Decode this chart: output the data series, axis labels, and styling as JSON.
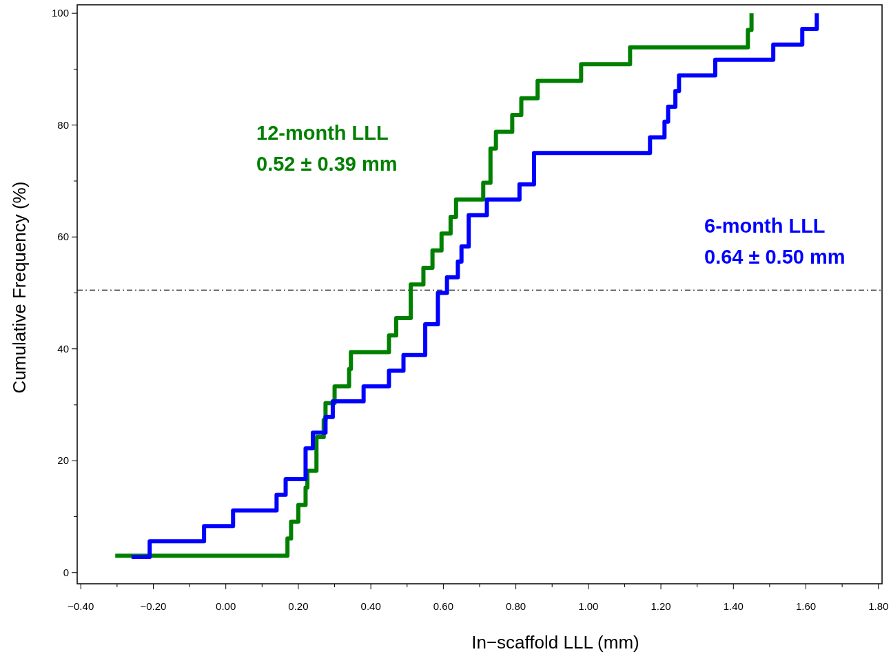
{
  "chart_data": {
    "type": "step",
    "xlabel": "In−scaffold LLL (mm)",
    "ylabel": "Cumulative Frequency (%)",
    "xlim": [
      -0.41,
      1.81
    ],
    "ylim": [
      -2,
      101.5
    ],
    "xticks": [
      {
        "value": -0.4,
        "label": "−0.40"
      },
      {
        "value": -0.3,
        "label": null
      },
      {
        "value": -0.2,
        "label": "−0.20"
      },
      {
        "value": -0.1,
        "label": null
      },
      {
        "value": 0,
        "label": "0.00"
      },
      {
        "value": 0.1,
        "label": null
      },
      {
        "value": 0.2,
        "label": "0.20"
      },
      {
        "value": 0.3,
        "label": null
      },
      {
        "value": 0.4,
        "label": "0.40"
      },
      {
        "value": 0.5,
        "label": null
      },
      {
        "value": 0.6,
        "label": "0.60"
      },
      {
        "value": 0.7,
        "label": null
      },
      {
        "value": 0.8,
        "label": "0.80"
      },
      {
        "value": 0.9,
        "label": null
      },
      {
        "value": 1.0,
        "label": "1.00"
      },
      {
        "value": 1.1,
        "label": null
      },
      {
        "value": 1.2,
        "label": "1.20"
      },
      {
        "value": 1.3,
        "label": null
      },
      {
        "value": 1.4,
        "label": "1.40"
      },
      {
        "value": 1.5,
        "label": null
      },
      {
        "value": 1.6,
        "label": "1.60"
      },
      {
        "value": 1.7,
        "label": null
      },
      {
        "value": 1.8,
        "label": "1.80"
      }
    ],
    "yticks": [
      0,
      {
        "value": 10,
        "label": null
      },
      20,
      {
        "value": 30,
        "label": null
      },
      40,
      {
        "value": 50,
        "label": null
      },
      60,
      {
        "value": 70,
        "label": null
      },
      80,
      {
        "value": 90,
        "label": null
      },
      100
    ],
    "grid": false,
    "marker": "none",
    "line_style": "solid",
    "series": [
      {
        "name": "12-month LLL",
        "color": "#008000",
        "x": [
          -0.305,
          0.17,
          0.18,
          0.2,
          0.22,
          0.225,
          0.25,
          0.27,
          0.275,
          0.3,
          0.34,
          0.345,
          0.45,
          0.47,
          0.51,
          0.545,
          0.57,
          0.595,
          0.62,
          0.635,
          0.71,
          0.73,
          0.745,
          0.79,
          0.815,
          0.86,
          0.98,
          1.115,
          1.44,
          1.45
        ],
        "values": [
          3.0,
          6.1,
          9.1,
          12.1,
          15.2,
          18.2,
          24.2,
          27.3,
          30.3,
          33.3,
          36.4,
          39.4,
          42.4,
          45.5,
          51.5,
          54.5,
          57.6,
          60.6,
          63.6,
          66.7,
          69.7,
          75.8,
          78.8,
          81.8,
          84.8,
          87.9,
          90.9,
          93.9,
          97.0,
          100
        ]
      },
      {
        "name": "6-month LLL",
        "color": "#0000ff",
        "x": [
          -0.26,
          -0.21,
          -0.06,
          0.02,
          0.14,
          0.165,
          0.22,
          0.24,
          0.275,
          0.295,
          0.38,
          0.45,
          0.49,
          0.55,
          0.585,
          0.61,
          0.64,
          0.65,
          0.67,
          0.72,
          0.81,
          0.85,
          1.17,
          1.21,
          1.22,
          1.24,
          1.25,
          1.35,
          1.51,
          1.59,
          1.63
        ],
        "values": [
          2.8,
          5.6,
          8.3,
          11.1,
          13.9,
          16.7,
          22.2,
          25,
          27.8,
          30.6,
          33.3,
          36.1,
          38.9,
          44.4,
          50,
          52.8,
          55.6,
          58.3,
          63.9,
          66.7,
          69.4,
          75,
          77.8,
          80.6,
          83.3,
          86.1,
          88.9,
          91.7,
          94.4,
          97.2,
          100
        ]
      }
    ],
    "annotations": [
      "0.52 ± 0.39 mm",
      "0.64 ± 0.50 mm"
    ],
    "ref_lines": [
      {
        "axis": "y",
        "value": 50.5,
        "line_style": "dashdot",
        "color": "#000000"
      }
    ]
  }
}
